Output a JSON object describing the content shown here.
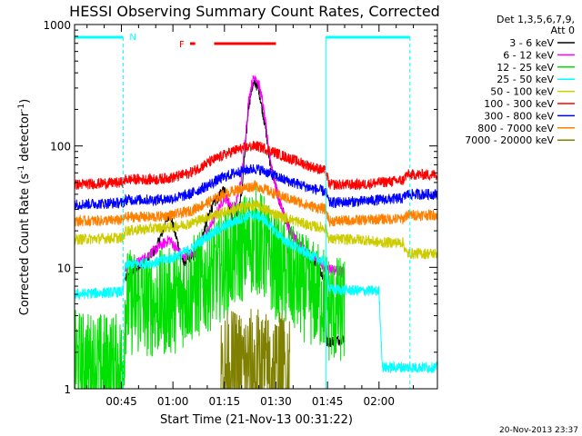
{
  "chart_data": {
    "type": "line",
    "title": "HESSI Observing Summary Count Rates, Corrected",
    "xlabel": "Start Time (21-Nov-13 00:31:22)",
    "ylabel_main": "Corrected Count Rate (s",
    "ylabel_sup1": "-1",
    "ylabel_mid": " detector",
    "ylabel_sup2": "-1",
    "ylabel_end": ")",
    "timestamp": "20-Nov-2013 23:37",
    "x_ticks": [
      "00:45",
      "01:00",
      "01:15",
      "01:30",
      "01:45",
      "02:00"
    ],
    "x_tick_minutes": [
      45,
      60,
      75,
      90,
      105,
      120
    ],
    "x_range_minutes": [
      31.37,
      137
    ],
    "y_scale": "log",
    "y_range": [
      1,
      1000
    ],
    "y_ticks": [
      "1",
      "10",
      "100",
      "1000"
    ],
    "y_tick_values": [
      1,
      10,
      100,
      1000
    ],
    "legend_title_1": "Det 1,3,5,6,7,9,",
    "legend_title_2": "Att 0",
    "legend_position": "outside-right",
    "series": [
      {
        "name": "3 - 6 keV",
        "color": "#000000",
        "x": [
          31.4,
          46,
          46.2,
          50,
          55,
          59,
          63,
          67,
          71,
          75,
          78,
          80,
          82,
          83,
          84,
          85,
          86,
          87,
          88,
          89,
          91,
          94,
          98,
          102,
          104.5,
          104.7,
          110,
          110.2,
          118
        ],
        "y": [
          null,
          null,
          8,
          10,
          14,
          28,
          11,
          13,
          30,
          45,
          22,
          40,
          210,
          300,
          330,
          290,
          200,
          140,
          80,
          60,
          35,
          20,
          13,
          10,
          8,
          2.4,
          2.6,
          null,
          null
        ]
      },
      {
        "name": "6 - 12 keV",
        "color": "#ff00ff",
        "x": [
          46.2,
          50,
          55,
          59,
          63,
          67,
          71,
          75,
          78,
          80,
          82,
          83,
          84,
          85,
          86,
          87,
          88,
          89,
          91,
          94,
          98,
          104.5,
          110
        ],
        "y": [
          10,
          11,
          14,
          17,
          12,
          14,
          22,
          38,
          30,
          55,
          230,
          330,
          380,
          320,
          240,
          150,
          90,
          60,
          35,
          20,
          14,
          10,
          9
        ]
      },
      {
        "name": "12 - 25 keV",
        "color": "#00e000",
        "x": [
          31.4,
          45.5,
          46.2,
          55,
          60,
          65,
          70,
          74,
          78,
          82,
          84,
          86,
          89,
          92,
          96,
          100,
          104.5,
          105.5,
          110,
          137
        ],
        "y": [
          1.6,
          1.5,
          5.2,
          5.0,
          5.3,
          6.5,
          8,
          10,
          12.5,
          16,
          17,
          15,
          11,
          9,
          7.5,
          6.2,
          5.5,
          4.5,
          4.4,
          null
        ]
      },
      {
        "name": "25 - 50 keV",
        "color": "#00ffff",
        "x": [
          31.4,
          45.5,
          46.2,
          55,
          60,
          65,
          70,
          74,
          78,
          82,
          84,
          86,
          89,
          92,
          96,
          100,
          104.5,
          105.5,
          115,
          120,
          121,
          137
        ],
        "y": [
          6,
          6.3,
          10.5,
          11,
          12,
          14,
          18,
          21,
          24,
          26.5,
          27,
          25.5,
          21,
          17,
          14.5,
          12.5,
          11,
          6.6,
          6.4,
          6.4,
          1.5,
          1.5
        ]
      },
      {
        "name": "50 - 100 keV",
        "color": "#cccc00",
        "x": [
          31.4,
          45.5,
          46.2,
          55,
          60,
          65,
          70,
          74,
          78,
          82,
          84,
          86,
          89,
          92,
          96,
          100,
          104.5,
          105.5,
          115,
          120,
          127,
          128,
          137
        ],
        "y": [
          17,
          17.5,
          20,
          21,
          21.5,
          23,
          26,
          28,
          30,
          32,
          32.5,
          31,
          28,
          26,
          24,
          22,
          21,
          17,
          17,
          16,
          16,
          13,
          13
        ]
      },
      {
        "name": "100 - 300 keV",
        "color": "#ff0000",
        "x": [
          31.4,
          45.5,
          46.2,
          55,
          60,
          65,
          70,
          74,
          78,
          82,
          84,
          86,
          89,
          92,
          96,
          100,
          104.5,
          105.5,
          115,
          120,
          127,
          128,
          137
        ],
        "y": [
          48,
          50,
          53,
          53,
          55,
          60,
          72,
          82,
          92,
          98,
          100,
          97,
          90,
          83,
          75,
          68,
          62,
          48,
          48,
          50,
          52,
          58,
          58
        ]
      },
      {
        "name": "300 - 800 keV",
        "color": "#0000ff",
        "x": [
          31.4,
          45.5,
          46.2,
          55,
          60,
          65,
          70,
          74,
          78,
          82,
          84,
          86,
          89,
          92,
          96,
          100,
          104.5,
          105.5,
          115,
          120,
          127,
          128,
          137
        ],
        "y": [
          33,
          34,
          36,
          36,
          37,
          40,
          47,
          54,
          60,
          64,
          65,
          63,
          58,
          53,
          49,
          45,
          42,
          34,
          35,
          36,
          37,
          40,
          40
        ]
      },
      {
        "name": "800 - 7000 keV",
        "color": "#ff8000",
        "x": [
          31.4,
          45.5,
          46.2,
          55,
          60,
          65,
          70,
          74,
          78,
          82,
          84,
          86,
          89,
          92,
          96,
          100,
          104.5,
          105.5,
          115,
          120,
          127,
          128,
          137
        ],
        "y": [
          24,
          24.5,
          26,
          26,
          27,
          29,
          34,
          39,
          43,
          46,
          47,
          45,
          41,
          38,
          35,
          32,
          30,
          24,
          24.5,
          25,
          25,
          27,
          27
        ]
      },
      {
        "name": "7000 - 20000 keV",
        "color": "#808000",
        "x": [
          31.4,
          73,
          74,
          85,
          86,
          94,
          95,
          137
        ],
        "y": [
          null,
          null,
          1.4,
          1.5,
          1.4,
          1.4,
          null,
          null
        ]
      }
    ],
    "annotations": {
      "n_label": "N",
      "f_label": "F",
      "night_intervals_minutes": [
        [
          31.4,
          45.5
        ],
        [
          104.5,
          129
        ]
      ],
      "flare_intervals_minutes": [
        [
          65,
          66.5
        ],
        [
          72,
          90
        ]
      ]
    }
  }
}
